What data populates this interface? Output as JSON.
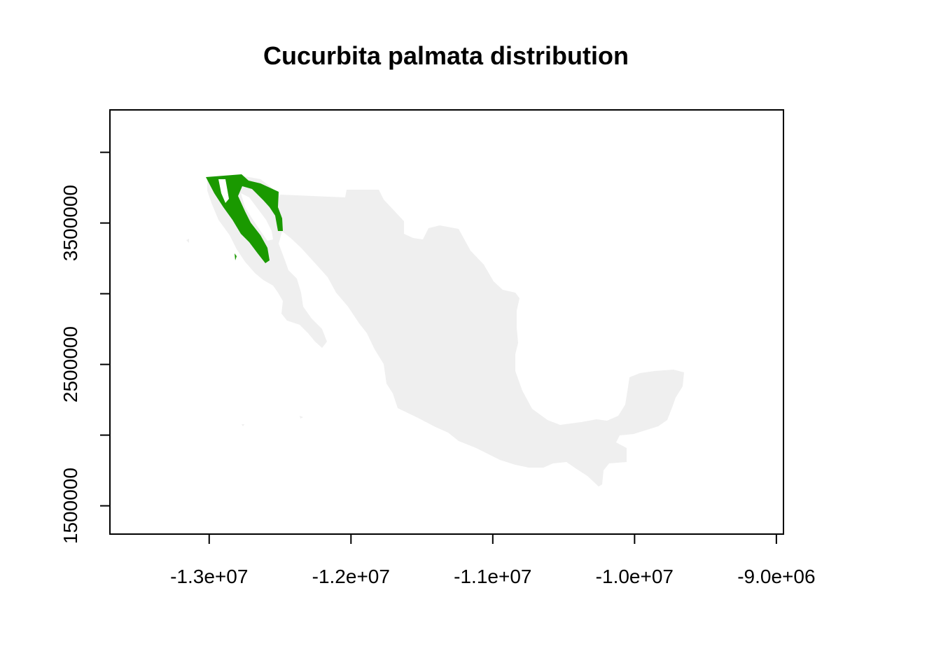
{
  "title": "Cucurbita palmata distribution",
  "map": {
    "projection": "Web Mercator (EPSG:3857)",
    "region": "Mexico",
    "country_fill": "#efefef",
    "distribution_fill": "#1a9900",
    "distribution_region": "Baja California and northwestern Sonora",
    "frame_color": "#000000"
  },
  "axes": {
    "x": {
      "range": [
        -13700000,
        -8950000
      ],
      "ticks": [
        -13000000,
        -12000000,
        -11000000,
        -10000000,
        -9000000
      ],
      "tick_labels": [
        "-1.3e+07",
        "-1.2e+07",
        "-1.1e+07",
        "-1.0e+07",
        "-9.0e+06"
      ]
    },
    "y": {
      "range": [
        1300000,
        4300000
      ],
      "ticks": [
        1500000,
        2000000,
        2500000,
        3000000,
        3500000,
        4000000
      ],
      "tick_labels": [
        "1500000",
        "",
        "2500000",
        "",
        "3500000",
        ""
      ]
    }
  }
}
